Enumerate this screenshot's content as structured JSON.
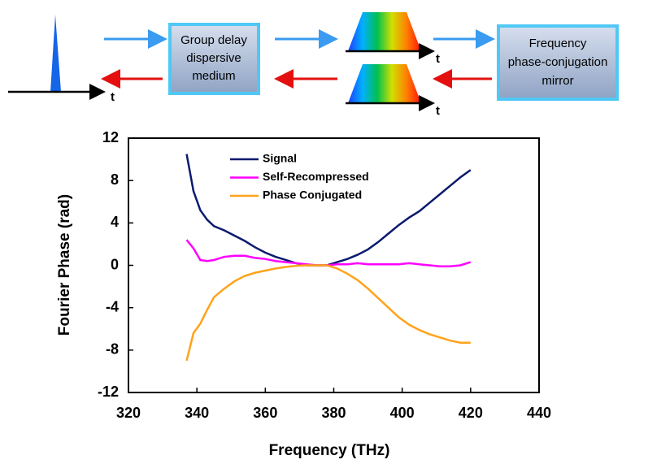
{
  "diagram": {
    "medium_box": [
      "Group delay",
      "dispersive",
      "medium"
    ],
    "mirror_box": [
      "Frequency",
      "phase-conjugation",
      "mirror"
    ],
    "time_labels": [
      "t",
      "t",
      "t"
    ]
  },
  "chart_data": {
    "type": "line",
    "x_label": "Frequency (THz)",
    "y_label": "Fourier Phase (rad)",
    "x": [
      337,
      339,
      341,
      343,
      345,
      348,
      351,
      354,
      357,
      360,
      363,
      366,
      369,
      372,
      375,
      378,
      381,
      384,
      387,
      390,
      393,
      396,
      399,
      402,
      405,
      408,
      411,
      414,
      417,
      420
    ],
    "series": [
      {
        "name": "Signal",
        "color": "#0a1a6e",
        "values": [
          10.5,
          7,
          5.2,
          4.3,
          3.7,
          3.3,
          2.8,
          2.3,
          1.7,
          1.2,
          0.8,
          0.5,
          0.2,
          0,
          0,
          0,
          0.3,
          0.6,
          1,
          1.5,
          2.2,
          3,
          3.8,
          4.5,
          5.1,
          5.9,
          6.7,
          7.5,
          8.3,
          9.0
        ]
      },
      {
        "name": "Self-Recompressed",
        "color": "#ff00ff",
        "values": [
          2.4,
          1.6,
          0.5,
          0.4,
          0.5,
          0.8,
          0.9,
          0.9,
          0.7,
          0.6,
          0.4,
          0.3,
          0.2,
          0.1,
          0,
          0,
          0.1,
          0.1,
          0.2,
          0.1,
          0.1,
          0.1,
          0.1,
          0.2,
          0.1,
          0,
          -0.1,
          -0.1,
          0,
          0.3
        ]
      },
      {
        "name": "Phase Conjugated",
        "color": "#ffa31a",
        "values": [
          -9,
          -6.4,
          -5.5,
          -4.2,
          -3,
          -2.2,
          -1.5,
          -1,
          -0.7,
          -0.5,
          -0.3,
          -0.15,
          -0.05,
          0,
          0,
          0,
          -0.3,
          -0.8,
          -1.4,
          -2.2,
          -3.1,
          -4,
          -4.9,
          -5.6,
          -6.1,
          -6.5,
          -6.8,
          -7.1,
          -7.3,
          -7.3
        ]
      }
    ],
    "xlim": [
      320,
      440
    ],
    "xticks": [
      320,
      340,
      360,
      380,
      400,
      420,
      440
    ],
    "ylim": [
      -12,
      12
    ],
    "yticks": [
      -12,
      -8,
      -4,
      0,
      4,
      8,
      12
    ]
  }
}
